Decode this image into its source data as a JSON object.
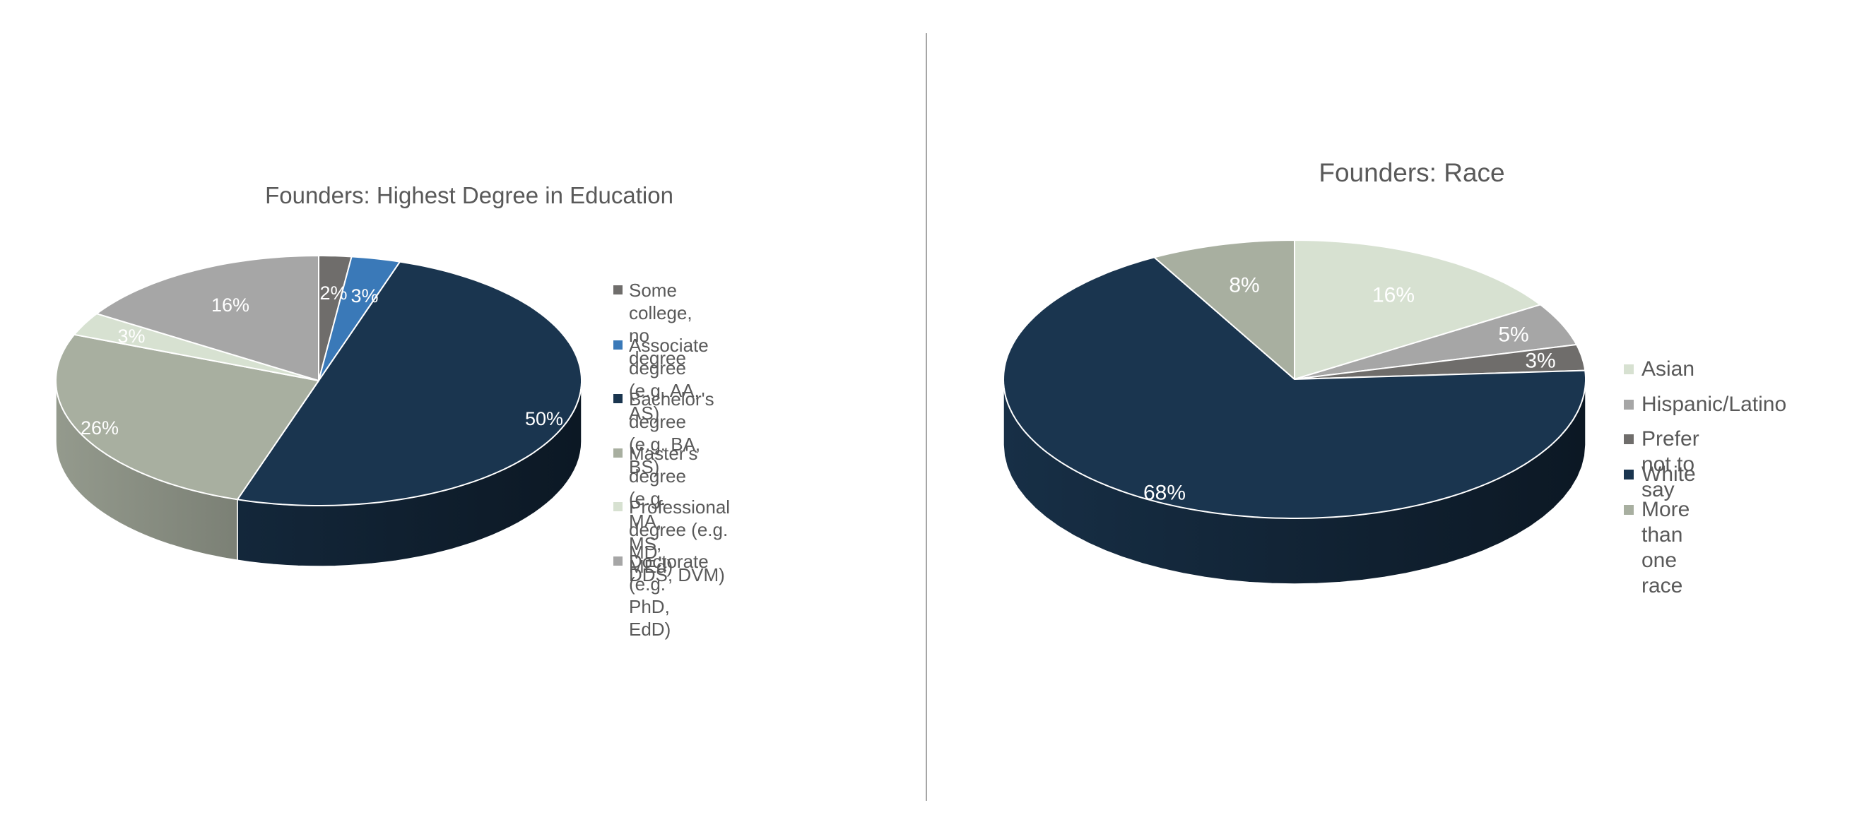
{
  "chart_data": [
    {
      "type": "pie",
      "style": "3d",
      "title": "Founders: Highest Degree in Education",
      "categories": [
        "Some college, no degree",
        "Associate degree (e.g. AA, AS)",
        "Bachelor's degree (e.g. BA, BS)",
        "Master's degree (e.g. MA, MS, MEd)",
        "Professional degree (e.g. MD, DDS, DVM)",
        "Doctorate (e.g. PhD, EdD)"
      ],
      "values": [
        2,
        3,
        50,
        26,
        3,
        16
      ],
      "labels": [
        "2%",
        "3%",
        "50%",
        "26%",
        "3%",
        "16%"
      ],
      "colors": [
        "#6f6d6b",
        "#3a79b8",
        "#1a354f",
        "#a8afa0",
        "#d7e1d1",
        "#a6a6a6"
      ],
      "legend_position": "right",
      "unit": "%"
    },
    {
      "type": "pie",
      "style": "3d",
      "title": "Founders: Race",
      "categories": [
        "Asian",
        "Hispanic/Latino",
        "Prefer not to say",
        "White",
        "More than one race"
      ],
      "values": [
        16,
        5,
        3,
        68,
        8
      ],
      "labels": [
        "16%",
        "5%",
        "3%",
        "68%",
        "8%"
      ],
      "colors": [
        "#d7e1d1",
        "#a6a6a6",
        "#6f6d6b",
        "#1a354f",
        "#a8afa0"
      ],
      "legend_position": "right",
      "unit": "%"
    }
  ],
  "left_chart": {
    "title": "Founders: Highest Degree in Education",
    "legend": [
      {
        "label": "Some college, no degree",
        "color": "#6f6d6b"
      },
      {
        "label": "Associate degree (e.g. AA, AS)",
        "color": "#3a79b8"
      },
      {
        "label": "Bachelor's degree (e.g. BA, BS)",
        "color": "#1a354f"
      },
      {
        "label": "Master's degree (e.g. MA, MS,\nMEd)",
        "color": "#a8afa0"
      },
      {
        "label": "Professional degree (e.g. MD,\nDDS, DVM)",
        "color": "#d7e1d1"
      },
      {
        "label": "Doctorate (e.g. PhD, EdD)",
        "color": "#a6a6a6"
      }
    ]
  },
  "right_chart": {
    "title": "Founders: Race",
    "legend": [
      {
        "label": "Asian",
        "color": "#d7e1d1"
      },
      {
        "label": "Hispanic/Latino",
        "color": "#a6a6a6"
      },
      {
        "label": "Prefer not to say",
        "color": "#6f6d6b"
      },
      {
        "label": "White",
        "color": "#1a354f"
      },
      {
        "label": "More than one race",
        "color": "#a8afa0"
      }
    ]
  }
}
